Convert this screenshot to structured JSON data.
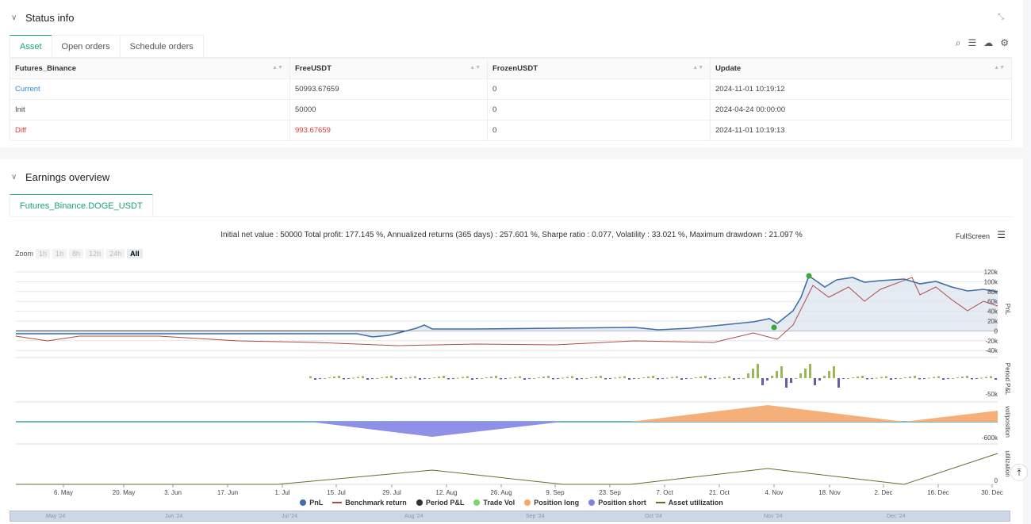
{
  "status": {
    "title": "Status info",
    "tabs": [
      "Asset",
      "Open orders",
      "Schedule orders"
    ],
    "columns": [
      "Futures_Binance",
      "FreeUSDT",
      "FrozenUSDT",
      "Update"
    ],
    "rows": [
      [
        "Current",
        "50993.67659",
        "0",
        "2024-11-01 10:19:12"
      ],
      [
        "Init",
        "50000",
        "0",
        "2024-04-24 00:00:00"
      ],
      [
        "Diff",
        "993.67659",
        "0",
        "2024-11-01 10:19:13"
      ]
    ]
  },
  "earnings": {
    "title": "Earnings overview",
    "tab": "Futures_Binance.DOGE_USDT",
    "stats": "Initial net value : 50000 Total profit: 177.145 %, Annualized returns (365 days) : 257.601 %, Sharpe ratio : 0.077, Volatility : 33.021 %, Maximum drawdown : 21.097 %",
    "fullscreen": "FullScreen",
    "zoom_label": "Zoom",
    "zoom_buttons": [
      "1h",
      "1h",
      "8h",
      "12h",
      "24h",
      "All"
    ]
  },
  "chart_data": {
    "type": "line",
    "x_ticks": [
      "6. May",
      "20. May",
      "3. Jun",
      "17. Jun",
      "1. Jul",
      "15. Jul",
      "29. Jul",
      "12. Aug",
      "26. Aug",
      "9. Sep",
      "23. Sep",
      "7. Oct",
      "21. Oct",
      "4. Nov",
      "18. Nov",
      "2. Dec",
      "16. Dec",
      "30. Dec"
    ],
    "pnl_axis": {
      "label": "PnL",
      "ticks": [
        "120k",
        "100k",
        "80k",
        "60k",
        "40k",
        "20k",
        "0",
        "-20k",
        "-40k"
      ]
    },
    "period_axis": {
      "label": "Period P&L",
      "ticks": [
        "-50k"
      ]
    },
    "position_axis": {
      "label": "vol/position",
      "ticks": [
        "-600k"
      ]
    },
    "util_axis": {
      "label": "utilization",
      "ticks": [
        "0"
      ]
    },
    "legend": [
      "PnL",
      "Benchmark return",
      "Period P&L",
      "Trade Vol",
      "Position long",
      "Position short",
      "Asset utilization"
    ],
    "colors": {
      "pnl": "#4a6fa5",
      "benchmark": "#b04a4a",
      "period_pos": "#9ab855",
      "period_neg": "#6a5aa8",
      "trade": "#7fd66a",
      "long": "#f5b07a",
      "short": "#9090e8",
      "util": "#6b6b2a"
    },
    "navigator_labels": [
      "May '24",
      "Jun '24",
      "Jul '24",
      "Aug '24",
      "Sep '24",
      "Oct '24",
      "Nov '24",
      "Dec '24"
    ]
  }
}
